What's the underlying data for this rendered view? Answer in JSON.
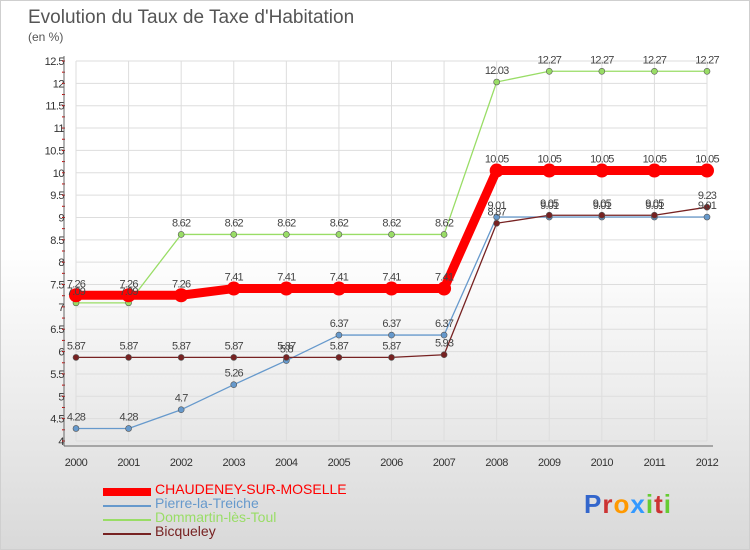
{
  "chart_data": {
    "type": "line",
    "title": "Evolution du Taux de Taxe d'Habitation",
    "subtitle": "(en %)",
    "xlabel": "",
    "ylabel": "(en %)",
    "categories": [
      "2000",
      "2001",
      "2002",
      "2003",
      "2004",
      "2005",
      "2006",
      "2007",
      "2008",
      "2009",
      "2010",
      "2011",
      "2012"
    ],
    "ylim": [
      4,
      12.5
    ],
    "yticks": [
      "4",
      "4.5",
      "5",
      "5.5",
      "6",
      "6.5",
      "7",
      "7.5",
      "8",
      "8.5",
      "9",
      "9.5",
      "10",
      "10.5",
      "11",
      "11.5",
      "12",
      "12.5"
    ],
    "grid": true,
    "series": [
      {
        "name": "CHAUDENEY-SUR-MOSELLE",
        "color": "#ff0000",
        "values": [
          7.26,
          7.26,
          7.26,
          7.41,
          7.41,
          7.41,
          7.41,
          7.41,
          10.05,
          10.05,
          10.05,
          10.05,
          10.05
        ],
        "labels": [
          "7.26",
          "7.26",
          "7.26",
          "7.41",
          "7.41",
          "7.41",
          "7.41",
          "7.41",
          "10.05",
          "10.05",
          "10.05",
          "10.05",
          "10.05"
        ]
      },
      {
        "name": "Pierre-la-Treiche",
        "color": "#6699cc",
        "values": [
          4.28,
          4.28,
          4.7,
          5.26,
          5.8,
          6.37,
          6.37,
          6.37,
          9.01,
          9.01,
          9.01,
          9.01,
          9.01
        ],
        "labels": [
          "4.28",
          "4.28",
          "4.7",
          "5.26",
          "5.8",
          "6.37",
          "6.37",
          "6.37",
          "9.01",
          "9.01",
          "9.01",
          "9.01",
          "9.01"
        ]
      },
      {
        "name": "Dommartin-lès-Toul",
        "color": "#99dd66",
        "values": [
          7.09,
          7.09,
          8.62,
          8.62,
          8.62,
          8.62,
          8.62,
          8.62,
          12.03,
          12.27,
          12.27,
          12.27,
          12.27
        ],
        "labels": [
          "7.09",
          "7.09",
          "8.62",
          "8.62",
          "8.62",
          "8.62",
          "8.62",
          "8.62",
          "12.03",
          "12.27",
          "12.27",
          "12.27",
          "12.27"
        ]
      },
      {
        "name": "Bicqueley",
        "color": "#772222",
        "values": [
          5.87,
          5.87,
          5.87,
          5.87,
          5.87,
          5.87,
          5.87,
          5.93,
          8.87,
          9.05,
          9.05,
          9.05,
          9.23
        ],
        "labels": [
          "5.87",
          "5.87",
          "5.87",
          "5.87",
          "5.87",
          "5.87",
          "5.87",
          "5.93",
          "8.87",
          "9.05",
          "9.05",
          "9.05",
          "9.23"
        ]
      }
    ],
    "legend_position": "bottom-left"
  },
  "logo": {
    "letters": [
      "P",
      "r",
      "o",
      "x",
      "i",
      "t",
      "i"
    ],
    "colors": [
      "#3366cc",
      "#cc3333",
      "#ff9900",
      "#3399ff",
      "#66cc33",
      "#cc3333",
      "#66cc33"
    ]
  }
}
